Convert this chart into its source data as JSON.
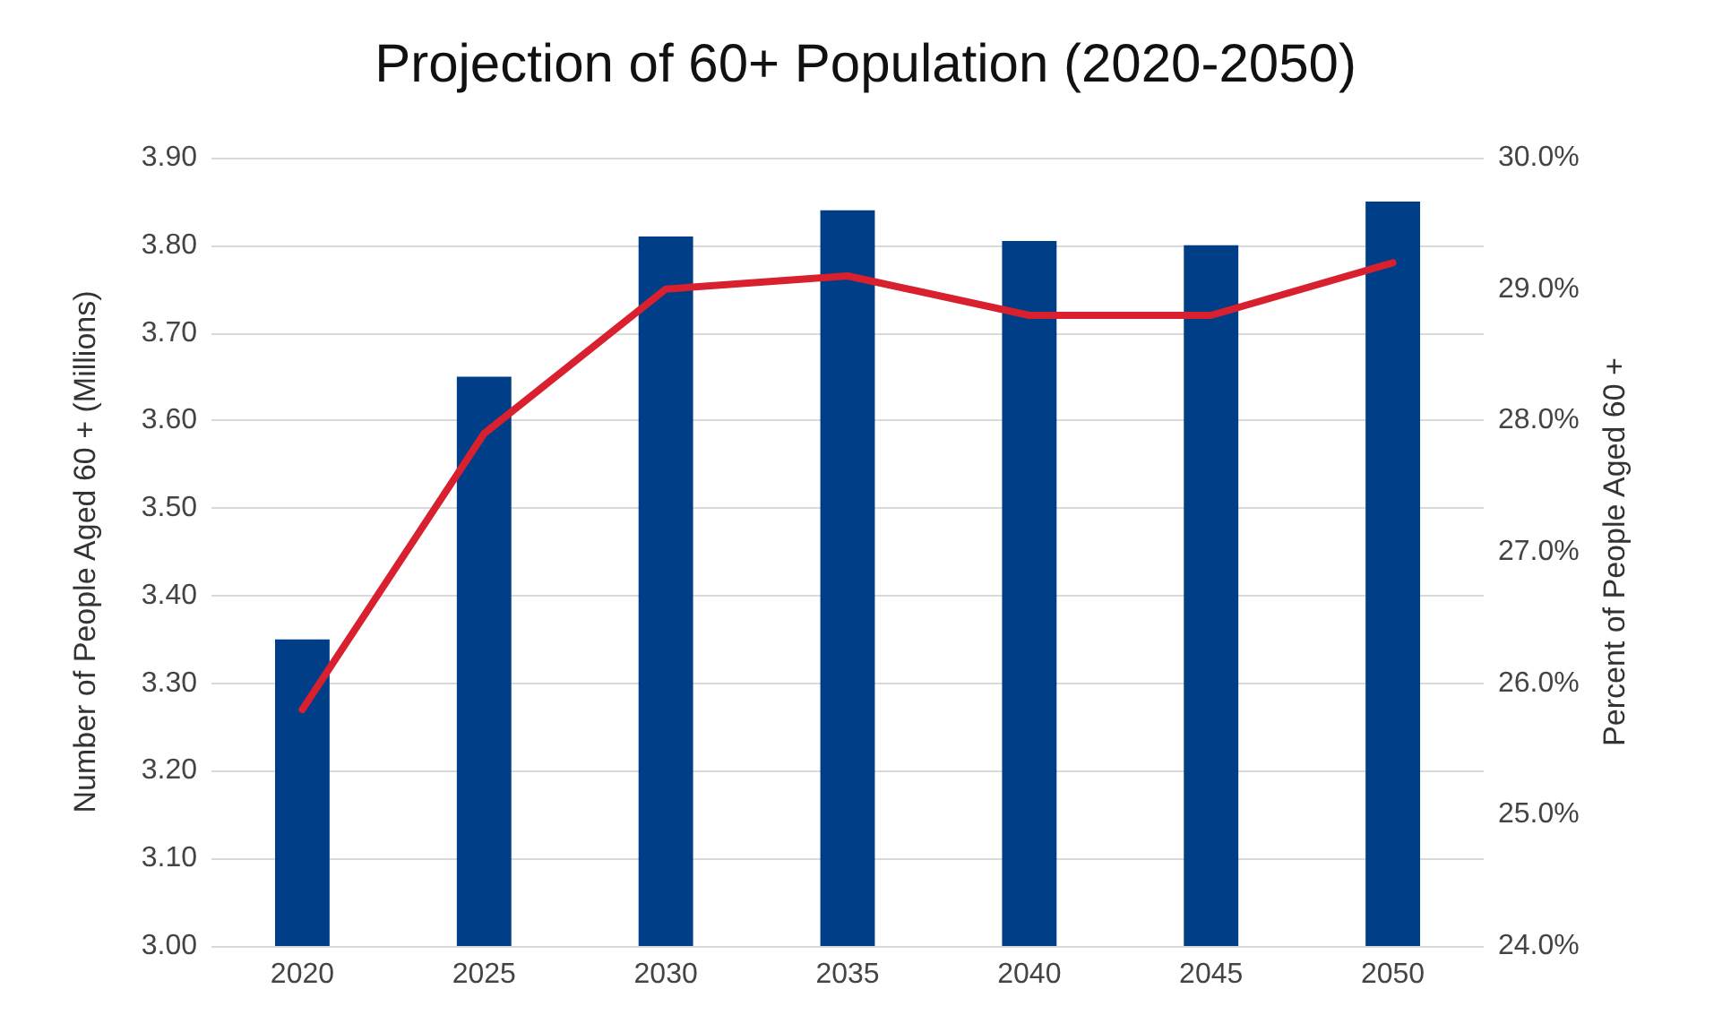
{
  "chart_data": {
    "type": "bar",
    "title": "Projection of 60+ Population (2020-2050)",
    "ylabel": "Number of People Aged 60 + (Millions)",
    "y2label": "Percent of People Aged 60 +",
    "categories": [
      "2020",
      "2025",
      "2030",
      "2035",
      "2040",
      "2045",
      "2050"
    ],
    "series": [
      {
        "color": "#003f87",
        "values": [
          3.35,
          3.65,
          3.81,
          3.84,
          3.805,
          3.8,
          3.85
        ]
      },
      {
        "type": "line",
        "axis": "y2",
        "color": "#d9202f",
        "values": [
          25.8,
          27.9,
          29.0,
          29.1,
          28.8,
          28.8,
          29.2
        ]
      }
    ],
    "ylim": [
      3.0,
      3.9
    ],
    "yticks": [
      {
        "value": 3.0,
        "label": "3.00"
      },
      {
        "value": 3.1,
        "label": "3.10"
      },
      {
        "value": 3.2,
        "label": "3.20"
      },
      {
        "value": 3.3,
        "label": "3.30"
      },
      {
        "value": 3.4,
        "label": "3.40"
      },
      {
        "value": 3.5,
        "label": "3.50"
      },
      {
        "value": 3.6,
        "label": "3.60"
      },
      {
        "value": 3.7,
        "label": "3.70"
      },
      {
        "value": 3.8,
        "label": "3.80"
      },
      {
        "value": 3.9,
        "label": "3.90"
      }
    ],
    "y2lim": [
      24,
      30
    ],
    "y2ticks": [
      {
        "value": 24,
        "label": "24.0%"
      },
      {
        "value": 25,
        "label": "25.0%"
      },
      {
        "value": 26,
        "label": "26.0%"
      },
      {
        "value": 27,
        "label": "27.0%"
      },
      {
        "value": 28,
        "label": "28.0%"
      },
      {
        "value": 29,
        "label": "29.0%"
      },
      {
        "value": 30,
        "label": "30.0%"
      }
    ],
    "grid": "y",
    "marker": "none",
    "line_style": "solid"
  }
}
